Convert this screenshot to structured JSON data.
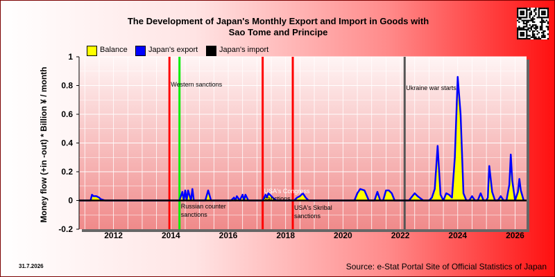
{
  "title_line1": "The Development of Japan's Monthly Export and Import in Goods with",
  "title_line2": "Sao Tome and Principe",
  "date_stamp": "31.7.2026",
  "source": "Source: e-Stat Portal Site of Official Statistics of Japan",
  "colors": {
    "balance": "#ffff00",
    "export": "#0000ff",
    "import": "#000000",
    "sanction_line": "#ff0000",
    "green_line": "#00ee00",
    "war_line": "#555555",
    "plot_bg_top": "#fff5f5",
    "plot_bg_bottom": "#f08a8a"
  },
  "legend": [
    {
      "label": "Balance",
      "color": "#ffff00"
    },
    {
      "label": "Japan's export",
      "color": "#0000ff"
    },
    {
      "label": "Japan's import",
      "color": "#000000"
    }
  ],
  "chart_data": {
    "type": "area",
    "title": "The Development of Japan's Monthly Export and Import in Goods with Sao Tome and Principe",
    "ylabel": "Money flow (+in -out) * Billion ¥ / month",
    "xlabel": "",
    "ylim": [
      -0.2,
      1.0
    ],
    "xlim": [
      2010.8,
      2026.4
    ],
    "yticks": [
      -0.2,
      0,
      0.2,
      0.4,
      0.6,
      0.8,
      1
    ],
    "xticks": [
      2012,
      2014,
      2016,
      2018,
      2020,
      2022,
      2024,
      2026
    ],
    "grid": true,
    "legend_position": "top-left",
    "series": [
      {
        "name": "Japan's export",
        "x": [
          2010.8,
          2011.0,
          2011.2,
          2011.25,
          2011.3,
          2011.4,
          2011.5,
          2011.55,
          2011.7,
          2014.3,
          2014.4,
          2014.45,
          2014.5,
          2014.55,
          2014.6,
          2014.7,
          2014.75,
          2014.8,
          2014.9,
          2015.2,
          2015.3,
          2015.4,
          2016.1,
          2016.2,
          2016.25,
          2016.3,
          2016.4,
          2016.5,
          2016.55,
          2016.6,
          2016.7,
          2017.2,
          2017.3,
          2017.35,
          2017.4,
          2017.5,
          2017.6,
          2017.7,
          2018.3,
          2018.4,
          2018.5,
          2018.6,
          2018.7,
          2018.8,
          2020.4,
          2020.5,
          2020.6,
          2020.75,
          2020.9,
          2021.0,
          2021.1,
          2021.2,
          2021.3,
          2021.4,
          2021.5,
          2021.6,
          2021.7,
          2021.8,
          2022.3,
          2022.5,
          2022.6,
          2022.8,
          2023.0,
          2023.1,
          2023.2,
          2023.3,
          2023.4,
          2023.5,
          2023.6,
          2023.7,
          2023.8,
          2023.9,
          2024.0,
          2024.1,
          2024.2,
          2024.3,
          2024.4,
          2024.5,
          2024.6,
          2024.7,
          2024.8,
          2024.9,
          2025.0,
          2025.05,
          2025.1,
          2025.2,
          2025.3,
          2025.4,
          2025.5,
          2025.6,
          2025.7,
          2025.8,
          2025.85,
          2025.9,
          2026.0,
          2026.1,
          2026.15,
          2026.2,
          2026.3
        ],
        "y": [
          0,
          0,
          0,
          0.04,
          0.03,
          0.03,
          0.02,
          0.01,
          0,
          0,
          0.06,
          0,
          0.07,
          0,
          0.07,
          0,
          0.08,
          0,
          0,
          0,
          0.07,
          0,
          0,
          0.02,
          0,
          0.03,
          0,
          0.04,
          0,
          0.04,
          0,
          0,
          0.04,
          0.02,
          0.05,
          0.03,
          0.01,
          0,
          0,
          0.02,
          0.03,
          0.05,
          0.02,
          0,
          0,
          0.05,
          0.08,
          0.07,
          0,
          0,
          0,
          0.06,
          0,
          0,
          0.07,
          0.07,
          0.05,
          0,
          0,
          0.05,
          0.03,
          0,
          0,
          0.02,
          0.08,
          0.38,
          0.04,
          0,
          0.05,
          0.04,
          0.02,
          0.3,
          0.86,
          0.6,
          0.05,
          0,
          0,
          0.03,
          0,
          0,
          0.05,
          0,
          0,
          0.02,
          0.24,
          0.06,
          0,
          0,
          0.03,
          0,
          0,
          0.11,
          0.32,
          0.14,
          0,
          0.06,
          0.15,
          0.07,
          0
        ],
        "fill_to_zero": true
      },
      {
        "name": "Japan's import",
        "x": [
          2010.8,
          2026.4
        ],
        "y": [
          0,
          0
        ]
      }
    ],
    "reference_lines": [
      {
        "x": 2013.95,
        "color": "#ff0000",
        "label": "Western sanctions"
      },
      {
        "x": 2014.3,
        "color": "#00ee00",
        "label": "Russian counter sanctions"
      },
      {
        "x": 2017.2,
        "color": "#ff0000",
        "label": "USA's Congress sanctions"
      },
      {
        "x": 2018.25,
        "color": "#ff0000",
        "label": "USA's Skribal sanctions"
      },
      {
        "x": 2022.15,
        "color": "#555555",
        "label": "Ukraine war starts"
      }
    ]
  }
}
